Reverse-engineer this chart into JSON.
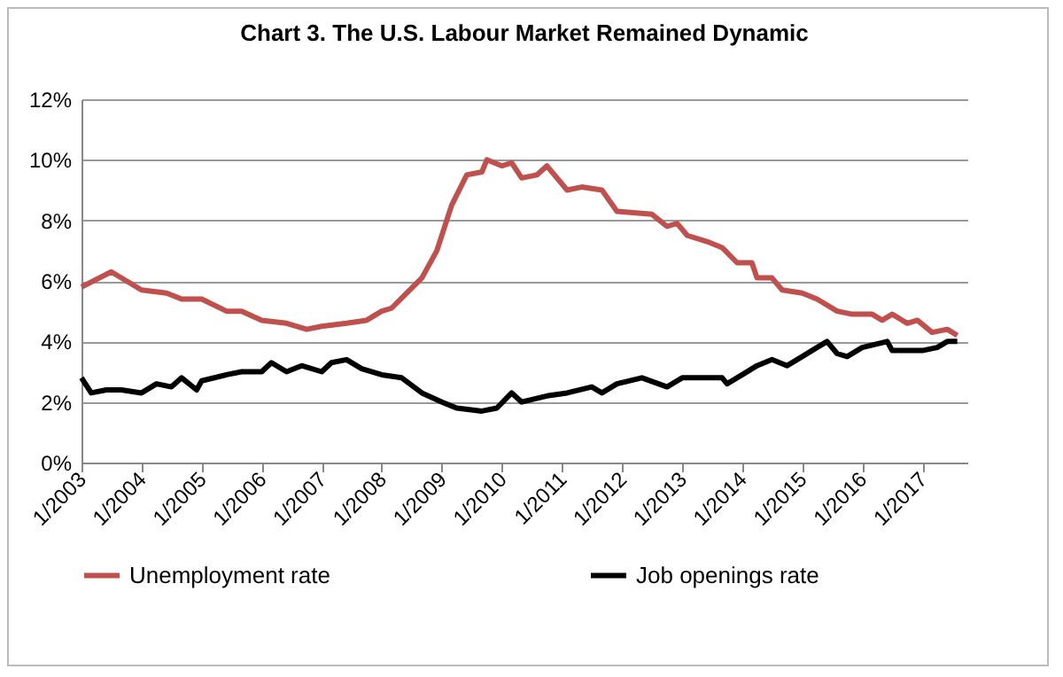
{
  "chart_data": {
    "type": "line",
    "title": "Chart 3. The U.S. Labour Market Remained Dynamic",
    "x": [
      "2003-01",
      "2003-07",
      "2003-10",
      "2004-01",
      "2004-06",
      "2004-09",
      "2005-01",
      "2005-06",
      "2005-09",
      "2006-01",
      "2006-06",
      "2006-10",
      "2007-01",
      "2007-06",
      "2007-10",
      "2008-01",
      "2008-03",
      "2008-06",
      "2008-09",
      "2008-12",
      "2009-03",
      "2009-06",
      "2009-09",
      "2009-10",
      "2010-01",
      "2010-03",
      "2010-05",
      "2010-08",
      "2010-10",
      "2011-02",
      "2011-05",
      "2011-09",
      "2011-12",
      "2012-07",
      "2012-10",
      "2012-12",
      "2013-02",
      "2013-06",
      "2013-09",
      "2013-12",
      "2014-03",
      "2014-04",
      "2014-07",
      "2014-09",
      "2015-01",
      "2015-04",
      "2015-08",
      "2015-11",
      "2016-03",
      "2016-05",
      "2016-07",
      "2016-10",
      "2016-12",
      "2017-03",
      "2017-06",
      "2017-08"
    ],
    "series": [
      {
        "name": "Unemployment rate",
        "color": "#c0504d",
        "values": [
          5.8,
          6.3,
          6.0,
          5.7,
          5.6,
          5.4,
          5.4,
          5.0,
          5.0,
          4.7,
          4.6,
          4.4,
          4.5,
          4.6,
          4.7,
          5.0,
          5.1,
          5.6,
          6.1,
          7.0,
          8.5,
          9.5,
          9.6,
          10.0,
          9.8,
          9.9,
          9.4,
          9.5,
          9.8,
          9.0,
          9.1,
          9.0,
          8.3,
          8.2,
          7.8,
          7.9,
          7.5,
          7.3,
          7.1,
          6.6,
          6.6,
          6.1,
          6.1,
          5.7,
          5.6,
          5.4,
          5.0,
          4.9,
          4.9,
          4.7,
          4.9,
          4.6,
          4.7,
          4.3,
          4.4,
          4.2
        ]
      },
      {
        "name": "Job openings rate",
        "color": "#000000",
        "x": [
          "2003-01",
          "2003-03",
          "2003-06",
          "2003-09",
          "2004-01",
          "2004-04",
          "2004-07",
          "2004-09",
          "2004-12",
          "2005-01",
          "2005-06",
          "2005-09",
          "2006-01",
          "2006-03",
          "2006-06",
          "2006-09",
          "2007-01",
          "2007-03",
          "2007-06",
          "2007-09",
          "2008-01",
          "2008-05",
          "2008-09",
          "2009-01",
          "2009-04",
          "2009-09",
          "2009-12",
          "2010-03",
          "2010-05",
          "2010-10",
          "2011-02",
          "2011-07",
          "2011-09",
          "2011-12",
          "2012-05",
          "2012-10",
          "2013-01",
          "2013-09",
          "2013-10",
          "2014-01",
          "2014-04",
          "2014-07",
          "2014-10",
          "2015-01",
          "2015-04",
          "2015-06",
          "2015-08",
          "2015-10",
          "2016-01",
          "2016-06",
          "2016-07",
          "2017-01",
          "2017-04",
          "2017-06",
          "2017-08"
        ],
        "values": [
          2.8,
          2.3,
          2.4,
          2.4,
          2.3,
          2.6,
          2.5,
          2.8,
          2.4,
          2.7,
          2.9,
          3.0,
          3.0,
          3.3,
          3.0,
          3.2,
          3.0,
          3.3,
          3.4,
          3.1,
          2.9,
          2.8,
          2.3,
          2.0,
          1.8,
          1.7,
          1.8,
          2.3,
          2.0,
          2.2,
          2.3,
          2.5,
          2.3,
          2.6,
          2.8,
          2.5,
          2.8,
          2.8,
          2.6,
          2.9,
          3.2,
          3.4,
          3.2,
          3.5,
          3.8,
          4.0,
          3.6,
          3.5,
          3.8,
          4.0,
          3.7,
          3.7,
          3.8,
          4.0,
          4.0
        ]
      }
    ],
    "xlim": [
      "2003-01",
      "2017-10"
    ],
    "xticks": [
      {
        "value": "2003-01",
        "label": "1/2003"
      },
      {
        "value": "2004-01",
        "label": "1/2004"
      },
      {
        "value": "2005-01",
        "label": "1/2005"
      },
      {
        "value": "2006-01",
        "label": "1/2006"
      },
      {
        "value": "2007-01",
        "label": "1/2007"
      },
      {
        "value": "2008-01",
        "label": "1/2008"
      },
      {
        "value": "2009-01",
        "label": "1/2009"
      },
      {
        "value": "2010-01",
        "label": "1/2010"
      },
      {
        "value": "2011-01",
        "label": "1/2011"
      },
      {
        "value": "2012-01",
        "label": "1/2012"
      },
      {
        "value": "2013-01",
        "label": "1/2013"
      },
      {
        "value": "2014-01",
        "label": "1/2014"
      },
      {
        "value": "2015-01",
        "label": "1/2015"
      },
      {
        "value": "2016-01",
        "label": "1/2016"
      },
      {
        "value": "2017-01",
        "label": "1/2017"
      }
    ],
    "ylim": [
      0,
      12
    ],
    "yticks": [
      {
        "value": 0,
        "label": "0%"
      },
      {
        "value": 2,
        "label": "2%"
      },
      {
        "value": 4,
        "label": "4%"
      },
      {
        "value": 6,
        "label": "6%"
      },
      {
        "value": 8,
        "label": "8%"
      },
      {
        "value": 10,
        "label": "10%"
      },
      {
        "value": 12,
        "label": "12%"
      }
    ],
    "grid": "y",
    "legend": "bottom",
    "marker": "none",
    "line_style": "solid"
  }
}
